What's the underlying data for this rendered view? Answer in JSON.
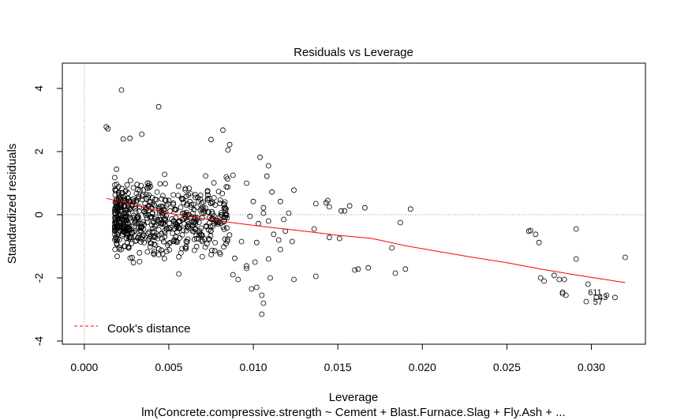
{
  "chart_data": {
    "type": "scatter",
    "title": "Residuals vs Leverage",
    "xlabel": "Leverage",
    "ylabel": "Standardized residuals",
    "subtitle": "lm(Concrete.compressive.strength ~ Cement + Blast.Furnace.Slag + Fly.Ash +  ...",
    "xlim": [
      -0.0013,
      0.0332
    ],
    "ylim": [
      -4.1,
      4.8
    ],
    "x_ticks": [
      0.0,
      0.005,
      0.01,
      0.015,
      0.02,
      0.025,
      0.03
    ],
    "x_tick_labels": [
      "0.000",
      "0.005",
      "0.010",
      "0.015",
      "0.020",
      "0.025",
      "0.030"
    ],
    "y_ticks": [
      -4,
      -2,
      0,
      2,
      4
    ],
    "y_tick_labels": [
      "-4",
      "-2",
      "0",
      "2",
      "4"
    ],
    "reference_lines": {
      "h": 0,
      "v": 0,
      "style": "dotted",
      "color": "#999999"
    },
    "legend": {
      "position": "bottom-left",
      "entries": [
        {
          "label": "Cook's distance",
          "color": "#ff0000",
          "style": "dashed"
        }
      ]
    },
    "smoother": {
      "color": "#ff0000",
      "x": [
        0.0013,
        0.003,
        0.005,
        0.007,
        0.009,
        0.011,
        0.013,
        0.015,
        0.017,
        0.019,
        0.021,
        0.023,
        0.025,
        0.027,
        0.029,
        0.032
      ],
      "y": [
        0.52,
        0.3,
        0.05,
        -0.12,
        -0.27,
        -0.4,
        -0.52,
        -0.65,
        -0.75,
        -0.98,
        -1.17,
        -1.35,
        -1.52,
        -1.72,
        -1.9,
        -2.15
      ]
    },
    "labeled_points": [
      {
        "label": "611",
        "x": 0.0298,
        "y": -2.55
      },
      {
        "label": "43",
        "x": 0.0304,
        "y": -2.7
      },
      {
        "label": "57",
        "x": 0.0301,
        "y": -2.85
      }
    ],
    "series": [
      {
        "marker": "open-circle",
        "color": "#000000",
        "points": [
          [
            0.0013,
            2.78
          ],
          [
            0.0014,
            2.72
          ],
          [
            0.0022,
            3.95
          ],
          [
            0.0044,
            3.42
          ],
          [
            0.0082,
            2.68
          ],
          [
            0.0034,
            2.55
          ],
          [
            0.0023,
            2.4
          ],
          [
            0.0027,
            2.42
          ],
          [
            0.0075,
            2.38
          ],
          [
            0.0086,
            2.22
          ],
          [
            0.0085,
            2.05
          ],
          [
            0.0104,
            1.82
          ],
          [
            0.0109,
            1.55
          ],
          [
            0.0108,
            1.22
          ],
          [
            0.0096,
            1.0
          ],
          [
            0.0084,
            1.2
          ],
          [
            0.0088,
            1.25
          ],
          [
            0.0111,
            0.72
          ],
          [
            0.0124,
            0.78
          ],
          [
            0.01,
            0.42
          ],
          [
            0.0106,
            0.22
          ],
          [
            0.0116,
            0.42
          ],
          [
            0.0121,
            0.05
          ],
          [
            0.0106,
            0.05
          ],
          [
            0.0098,
            -0.05
          ],
          [
            0.0103,
            -0.28
          ],
          [
            0.0109,
            -0.2
          ],
          [
            0.0112,
            -0.62
          ],
          [
            0.0119,
            -0.52
          ],
          [
            0.0116,
            -1.1
          ],
          [
            0.0109,
            -1.4
          ],
          [
            0.0101,
            -1.5
          ],
          [
            0.0096,
            -1.7
          ],
          [
            0.0088,
            -1.9
          ],
          [
            0.0091,
            -2.05
          ],
          [
            0.0099,
            -2.35
          ],
          [
            0.0102,
            -2.3
          ],
          [
            0.0105,
            -2.55
          ],
          [
            0.0106,
            -2.8
          ],
          [
            0.0105,
            -3.15
          ],
          [
            0.011,
            -2.0
          ],
          [
            0.0124,
            -2.05
          ],
          [
            0.0096,
            -1.62
          ],
          [
            0.0089,
            -1.38
          ],
          [
            0.0093,
            -0.85
          ],
          [
            0.0102,
            -0.88
          ],
          [
            0.0118,
            -0.15
          ],
          [
            0.0115,
            -0.8
          ],
          [
            0.0123,
            -0.85
          ],
          [
            0.0137,
            0.35
          ],
          [
            0.0143,
            0.38
          ],
          [
            0.0145,
            0.25
          ],
          [
            0.0152,
            0.12
          ],
          [
            0.0144,
            0.45
          ],
          [
            0.0154,
            0.12
          ],
          [
            0.0157,
            0.28
          ],
          [
            0.0166,
            0.22
          ],
          [
            0.0193,
            0.18
          ],
          [
            0.0187,
            -0.25
          ],
          [
            0.0136,
            -0.45
          ],
          [
            0.0145,
            -0.72
          ],
          [
            0.0151,
            -0.75
          ],
          [
            0.0137,
            -1.95
          ],
          [
            0.016,
            -1.75
          ],
          [
            0.0162,
            -1.72
          ],
          [
            0.0168,
            -1.68
          ],
          [
            0.0182,
            -1.05
          ],
          [
            0.0184,
            -1.85
          ],
          [
            0.019,
            -1.72
          ],
          [
            0.0263,
            -0.52
          ],
          [
            0.0264,
            -0.5
          ],
          [
            0.0267,
            -0.62
          ],
          [
            0.0269,
            -0.88
          ],
          [
            0.0291,
            -0.45
          ],
          [
            0.032,
            -1.35
          ],
          [
            0.0291,
            -1.4
          ],
          [
            0.027,
            -2.0
          ],
          [
            0.0272,
            -2.1
          ],
          [
            0.0278,
            -1.92
          ],
          [
            0.0281,
            -2.05
          ],
          [
            0.0284,
            -2.05
          ],
          [
            0.0283,
            -2.5
          ],
          [
            0.0285,
            -2.55
          ],
          [
            0.0283,
            -2.45
          ],
          [
            0.0298,
            -2.2
          ],
          [
            0.0297,
            -2.75
          ],
          [
            0.0303,
            -2.62
          ],
          [
            0.0309,
            -2.55
          ],
          [
            0.0314,
            -2.62
          ]
        ]
      }
    ]
  }
}
